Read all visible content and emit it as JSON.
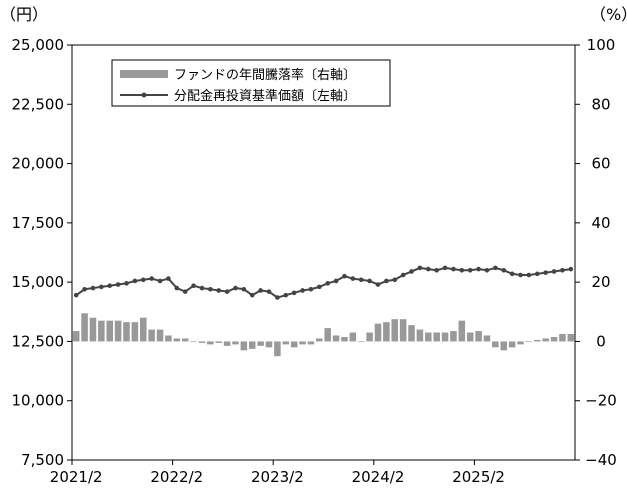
{
  "chart_data": {
    "type": "bar+line",
    "left_unit": "（円）",
    "right_unit": "（%）",
    "left_ylim": [
      7500,
      25000
    ],
    "left_ticks": [
      "25,000",
      "22,500",
      "20,000",
      "17,500",
      "15,000",
      "12,500",
      "10,000",
      "7,500"
    ],
    "right_ylim": [
      -40,
      100
    ],
    "right_ticks": [
      "100",
      "80",
      "60",
      "40",
      "20",
      "0",
      "−20",
      "−40"
    ],
    "x_tick_labels": [
      "2021/2",
      "2022/2",
      "2023/2",
      "2024/2",
      "2025/2"
    ],
    "x": [
      "2021/2",
      "2021/3",
      "2021/4",
      "2021/5",
      "2021/6",
      "2021/7",
      "2021/8",
      "2021/9",
      "2021/10",
      "2021/11",
      "2021/12",
      "2022/1",
      "2022/2",
      "2022/3",
      "2022/4",
      "2022/5",
      "2022/6",
      "2022/7",
      "2022/8",
      "2022/9",
      "2022/10",
      "2022/11",
      "2022/12",
      "2023/1",
      "2023/2",
      "2023/3",
      "2023/4",
      "2023/5",
      "2023/6",
      "2023/7",
      "2023/8",
      "2023/9",
      "2023/10",
      "2023/11",
      "2023/12",
      "2024/1",
      "2024/2",
      "2024/3",
      "2024/4",
      "2024/5",
      "2024/6",
      "2024/7",
      "2024/8",
      "2024/9",
      "2024/10",
      "2024/11",
      "2024/12",
      "2025/1",
      "2025/2",
      "2025/3",
      "2025/4",
      "2025/5",
      "2025/6",
      "2025/7",
      "2025/8",
      "2025/9",
      "2025/10",
      "2025/11",
      "2025/12",
      "2026/1"
    ],
    "series": [
      {
        "name": "ファンドの年間騰落率〔右軸〕",
        "type": "bar",
        "axis": "right",
        "color": "#999999",
        "values": [
          3.5,
          9.5,
          8,
          7,
          7,
          7,
          6.5,
          6.5,
          8,
          4,
          4,
          2,
          1,
          1,
          0,
          -0.5,
          -1,
          -0.5,
          -1.5,
          -1,
          -3,
          -2.5,
          -1.5,
          -2,
          -5,
          -1,
          -2,
          -1,
          -1,
          1,
          4.5,
          2,
          1.5,
          3,
          0,
          3,
          6,
          6.5,
          7.5,
          7.5,
          5.5,
          4,
          3,
          3,
          3,
          3.5,
          7,
          3,
          3.5,
          2,
          -2,
          -3,
          -2,
          -1,
          0,
          0.5,
          1,
          1.5,
          2.5,
          2.5
        ]
      },
      {
        "name": "分配金再投資基準価額〔左軸〕",
        "type": "line",
        "axis": "left",
        "color": "#444444",
        "values": [
          14450,
          14700,
          14750,
          14800,
          14850,
          14900,
          14950,
          15050,
          15100,
          15150,
          15050,
          15150,
          14750,
          14600,
          14850,
          14750,
          14700,
          14650,
          14600,
          14750,
          14700,
          14450,
          14650,
          14600,
          14350,
          14450,
          14550,
          14650,
          14700,
          14800,
          14950,
          15050,
          15250,
          15150,
          15100,
          15050,
          14900,
          15050,
          15100,
          15300,
          15450,
          15600,
          15550,
          15500,
          15600,
          15550,
          15500,
          15500,
          15550,
          15500,
          15600,
          15500,
          15350,
          15300,
          15300,
          15350,
          15400,
          15450,
          15500,
          15550
        ]
      }
    ],
    "legend_position": "top-left",
    "grid": false
  }
}
